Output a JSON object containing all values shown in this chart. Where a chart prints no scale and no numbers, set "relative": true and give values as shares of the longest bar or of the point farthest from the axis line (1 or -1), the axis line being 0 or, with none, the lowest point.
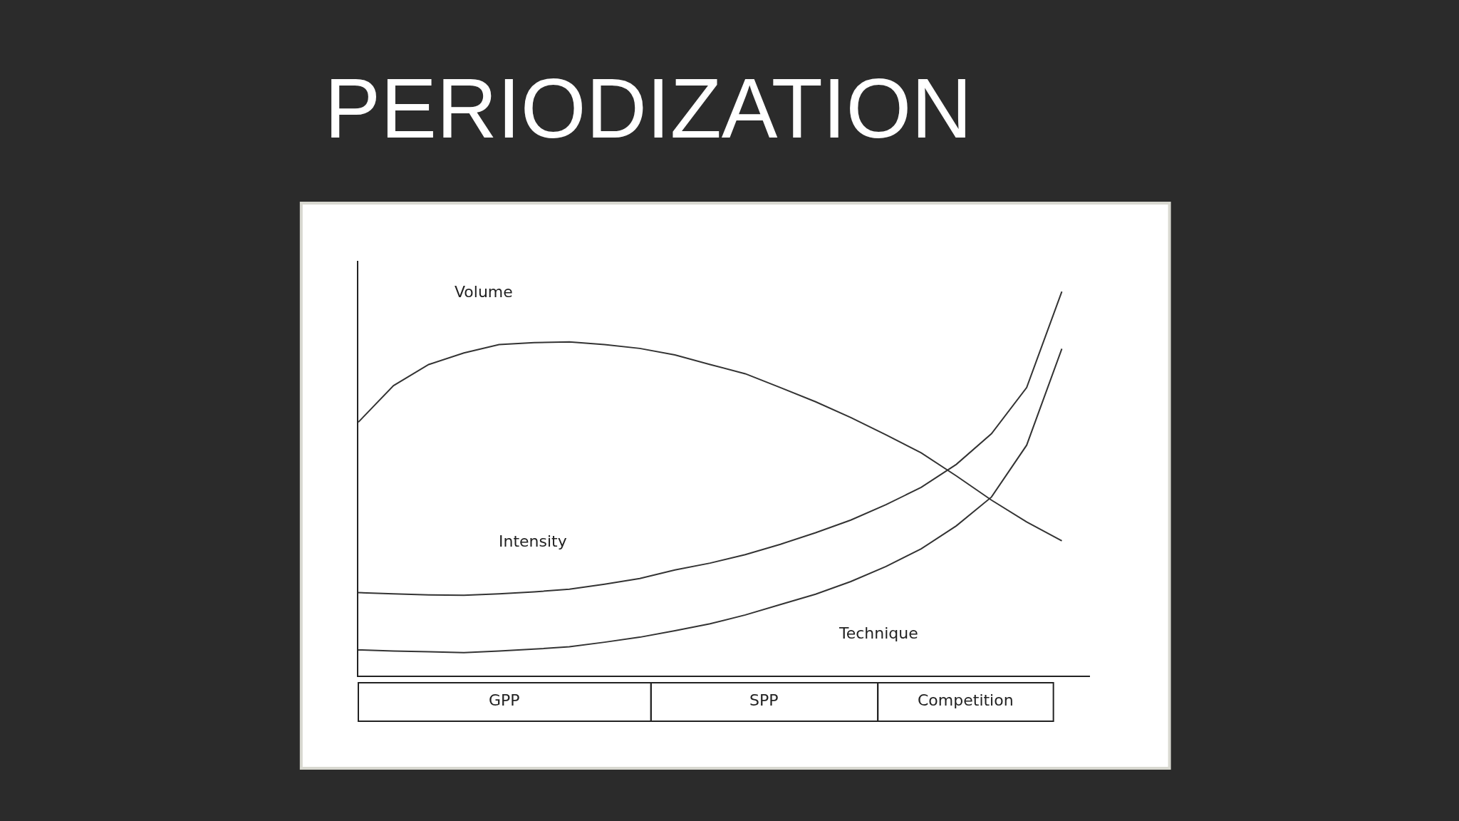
{
  "chart_data": {
    "type": "line",
    "title": "PERIODIZATION",
    "relative": true,
    "legend": false,
    "marker": "none",
    "line_style": "solid",
    "categories": [
      null,
      null,
      null,
      null,
      null,
      null,
      null,
      null,
      null,
      null,
      null,
      null,
      null,
      null,
      null,
      null,
      null,
      null,
      null,
      null,
      null
    ],
    "series": [
      {
        "name": "Volume",
        "color": "#333333",
        "values": [
          0.66,
          0.755,
          0.81,
          0.84,
          0.862,
          0.867,
          0.869,
          0.862,
          0.852,
          0.835,
          0.81,
          0.786,
          0.75,
          0.713,
          0.672,
          0.627,
          0.58,
          0.52,
          0.457,
          0.4,
          0.351
        ]
      },
      {
        "name": "Intensity",
        "color": "#333333",
        "values": [
          0.216,
          0.213,
          0.21,
          0.209,
          0.213,
          0.218,
          0.225,
          0.238,
          0.253,
          0.275,
          0.293,
          0.315,
          0.342,
          0.372,
          0.405,
          0.445,
          0.49,
          0.55,
          0.63,
          0.75,
          1.0
        ]
      },
      {
        "name": "Technique",
        "color": "#333333",
        "values": [
          0.067,
          0.064,
          0.062,
          0.06,
          0.064,
          0.069,
          0.075,
          0.087,
          0.1,
          0.117,
          0.135,
          0.158,
          0.185,
          0.212,
          0.245,
          0.284,
          0.33,
          0.39,
          0.465,
          0.6,
          0.851
        ]
      }
    ],
    "annotations": [
      "GPP",
      "SPP",
      "Competition"
    ]
  }
}
